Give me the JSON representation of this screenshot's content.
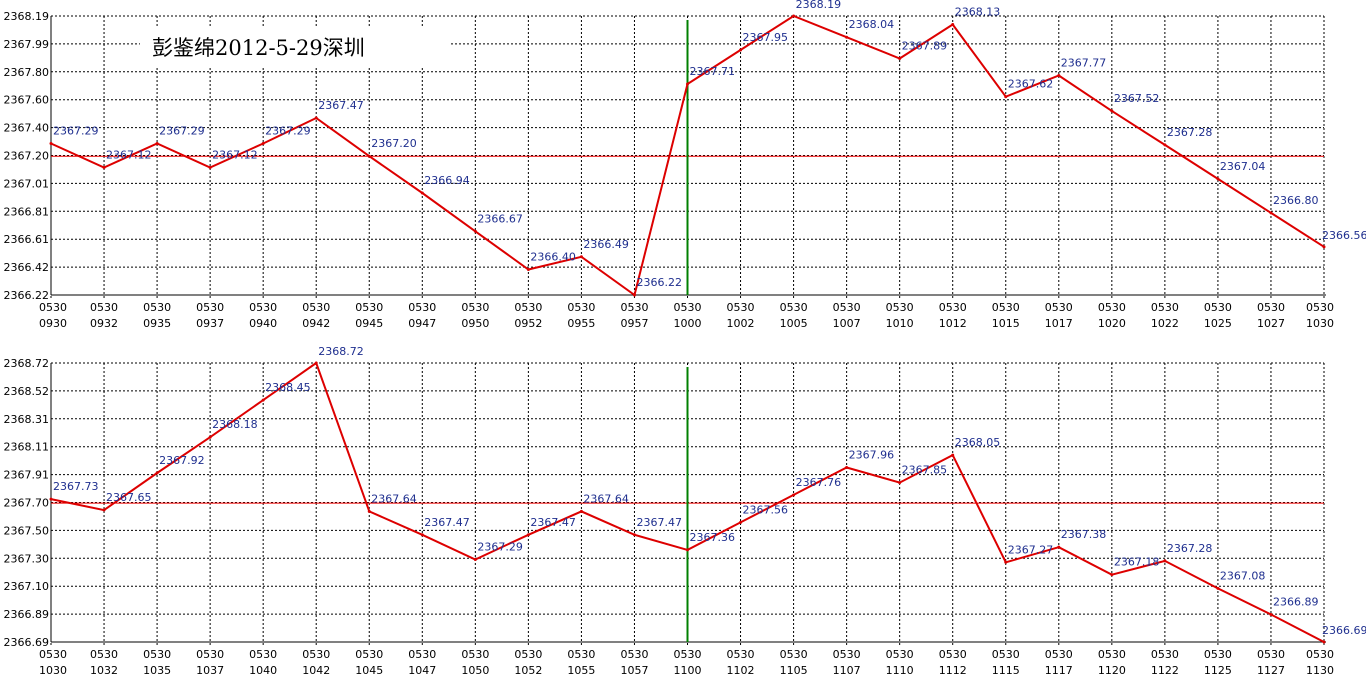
{
  "title": "彭鉴绵2012-5-29深圳",
  "colors": {
    "series": "#dd0000",
    "reference_line": "#ee0000",
    "vertical_marker": "#008000",
    "data_label": "#1f2f8f",
    "grid": "#000000",
    "background": "#ffffff"
  },
  "chart_data": [
    {
      "type": "line",
      "grid": true,
      "grid_style": "dashed",
      "x_labels": [
        [
          "0530",
          "0930"
        ],
        [
          "0530",
          "0932"
        ],
        [
          "0530",
          "0935"
        ],
        [
          "0530",
          "0937"
        ],
        [
          "0530",
          "0940"
        ],
        [
          "0530",
          "0942"
        ],
        [
          "0530",
          "0945"
        ],
        [
          "0530",
          "0947"
        ],
        [
          "0530",
          "0950"
        ],
        [
          "0530",
          "0952"
        ],
        [
          "0530",
          "0955"
        ],
        [
          "0530",
          "0957"
        ],
        [
          "0530",
          "1000"
        ],
        [
          "0530",
          "1002"
        ],
        [
          "0530",
          "1005"
        ],
        [
          "0530",
          "1007"
        ],
        [
          "0530",
          "1010"
        ],
        [
          "0530",
          "1012"
        ],
        [
          "0530",
          "1015"
        ],
        [
          "0530",
          "1017"
        ],
        [
          "0530",
          "1020"
        ],
        [
          "0530",
          "1022"
        ],
        [
          "0530",
          "1025"
        ],
        [
          "0530",
          "1027"
        ],
        [
          "0530",
          "1030"
        ]
      ],
      "y_ticks": [
        "2368.19",
        "2367.99",
        "2367.80",
        "2367.60",
        "2367.40",
        "2367.20",
        "2367.01",
        "2366.81",
        "2366.61",
        "2366.42",
        "2366.22"
      ],
      "ylim": [
        2366.22,
        2368.19
      ],
      "values": [
        2367.29,
        2367.12,
        2367.29,
        2367.12,
        2367.29,
        2367.47,
        2367.2,
        2366.94,
        2366.67,
        2366.4,
        2366.49,
        2366.22,
        2367.71,
        2367.95,
        2368.19,
        2368.04,
        2367.89,
        2368.13,
        2367.62,
        2367.77,
        2367.52,
        2367.28,
        2367.04,
        2366.8,
        2366.56
      ],
      "point_labels": [
        "2367.29",
        "2367.12",
        "2367.29",
        "2367.12",
        "2367.29",
        "2367.47",
        "2367.20",
        "2366.94",
        "2366.67",
        "2366.40",
        "2366.49",
        "2366.22",
        "2367.71",
        "2367.95",
        "2368.19",
        "2368.04",
        "2367.89",
        "2368.13",
        "2367.62",
        "2367.77",
        "2367.52",
        "2367.28",
        "2367.04",
        "2366.80",
        "2366.56"
      ],
      "reference_value": 2367.2,
      "vertical_marker_index": 12
    },
    {
      "type": "line",
      "grid": true,
      "grid_style": "dashed",
      "x_labels": [
        [
          "0530",
          "1030"
        ],
        [
          "0530",
          "1032"
        ],
        [
          "0530",
          "1035"
        ],
        [
          "0530",
          "1037"
        ],
        [
          "0530",
          "1040"
        ],
        [
          "0530",
          "1042"
        ],
        [
          "0530",
          "1045"
        ],
        [
          "0530",
          "1047"
        ],
        [
          "0530",
          "1050"
        ],
        [
          "0530",
          "1052"
        ],
        [
          "0530",
          "1055"
        ],
        [
          "0530",
          "1057"
        ],
        [
          "0530",
          "1100"
        ],
        [
          "0530",
          "1102"
        ],
        [
          "0530",
          "1105"
        ],
        [
          "0530",
          "1107"
        ],
        [
          "0530",
          "1110"
        ],
        [
          "0530",
          "1112"
        ],
        [
          "0530",
          "1115"
        ],
        [
          "0530",
          "1117"
        ],
        [
          "0530",
          "1120"
        ],
        [
          "0530",
          "1122"
        ],
        [
          "0530",
          "1125"
        ],
        [
          "0530",
          "1127"
        ],
        [
          "0530",
          "1130"
        ]
      ],
      "y_ticks": [
        "2368.72",
        "2368.52",
        "2368.31",
        "2368.11",
        "2367.91",
        "2367.70",
        "2367.50",
        "2367.30",
        "2367.10",
        "2366.89",
        "2366.69"
      ],
      "ylim": [
        2366.69,
        2368.72
      ],
      "values": [
        2367.73,
        2367.65,
        2367.92,
        2368.18,
        2368.45,
        2368.72,
        2367.64,
        2367.47,
        2367.29,
        2367.47,
        2367.64,
        2367.47,
        2367.36,
        2367.56,
        2367.76,
        2367.96,
        2367.85,
        2368.05,
        2367.27,
        2367.38,
        2367.18,
        2367.28,
        2367.08,
        2366.89,
        2366.69
      ],
      "point_labels": [
        "2367.73",
        "2367.65",
        "2367.92",
        "2368.18",
        "2368.45",
        "2368.72",
        "2367.64",
        "2367.47",
        "2367.29",
        "2367.47",
        "2367.64",
        "2367.47",
        "2367.36",
        "2367.56",
        "2367.76",
        "2367.96",
        "2367.85",
        "2368.05",
        "2367.27",
        "2367.38",
        "2367.18",
        "2367.28",
        "2367.08",
        "2366.89",
        "2366.69"
      ],
      "reference_value": 2367.7,
      "vertical_marker_index": 12
    }
  ]
}
